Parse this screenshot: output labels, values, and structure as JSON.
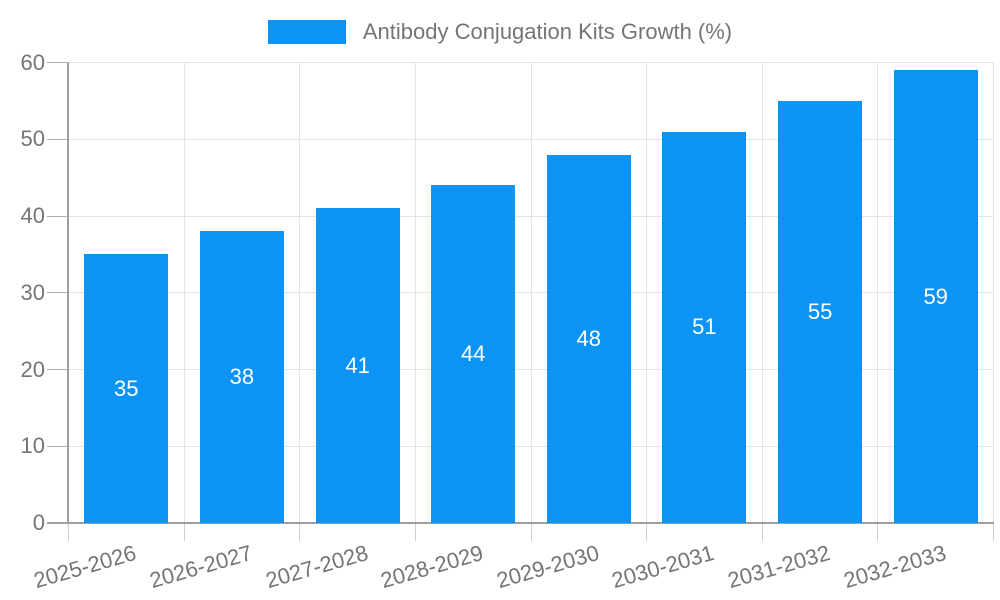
{
  "chart_data": {
    "type": "bar",
    "title": "Antibody Conjugation Kits Growth (%)",
    "legend": {
      "label": "Antibody Conjugation Kits Growth (%)",
      "position": "top-center"
    },
    "categories": [
      "2025-2026",
      "2026-2027",
      "2027-2028",
      "2028-2029",
      "2029-2030",
      "2030-2031",
      "2031-2032",
      "2032-2033"
    ],
    "series": [
      {
        "name": "Antibody Conjugation Kits Growth (%)",
        "values": [
          35,
          38,
          41,
          44,
          48,
          51,
          55,
          59
        ]
      }
    ],
    "value_labels": [
      "35",
      "38",
      "41",
      "44",
      "48",
      "51",
      "55",
      "59"
    ],
    "xlabel": "",
    "ylabel": "",
    "ylim": [
      0,
      60
    ],
    "yticks": [
      0,
      10,
      20,
      30,
      40,
      50,
      60
    ],
    "grid": "on",
    "x_label_rotation_deg": -16,
    "colors": {
      "bar": "#0b93f6",
      "value_label_text": "#ffffff",
      "axis_line": "#9e9e9e",
      "gridline": "#e4e4e4",
      "tick": "#aeaeae",
      "boundary_tick": "#cfcfcf",
      "label_text": "#757575",
      "background": "#ffffff"
    }
  }
}
